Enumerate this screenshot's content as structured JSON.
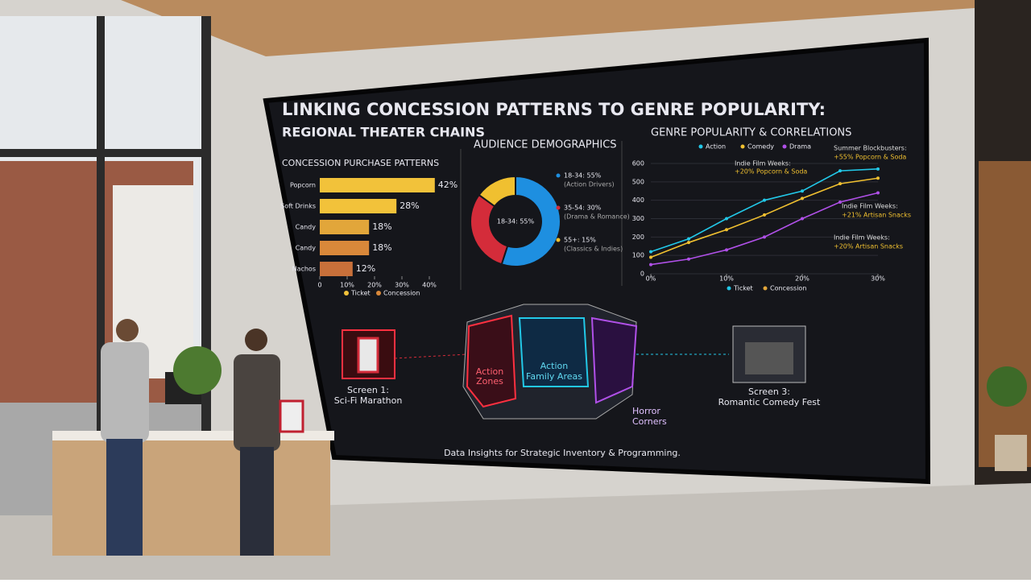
{
  "title": "LINKING CONCESSION PATTERNS TO GENRE POPULARITY:",
  "subtitle": "REGIONAL THEATER CHAINS",
  "chart_data": [
    {
      "type": "bar",
      "title": "CONCESSION PURCHASE PATTERNS",
      "categories": [
        "Popcorn",
        "Soft Drinks",
        "Candy",
        "Candy",
        "Nachos"
      ],
      "values": [
        42,
        28,
        18,
        18,
        12
      ],
      "value_labels": [
        "42%",
        "28%",
        "18%",
        "18%",
        "12%"
      ],
      "colors": [
        "#f2c23a",
        "#f2c23a",
        "#e2a63a",
        "#d9883a",
        "#c8703a"
      ],
      "xlim": [
        0,
        45
      ],
      "xticks": [
        0,
        {
          "value": 10,
          "label": "10%"
        },
        {
          "value": 20,
          "label": "20%"
        },
        {
          "value": 30,
          "label": "30%"
        },
        {
          "value": 40,
          "label": "40%"
        }
      ],
      "legend": [
        {
          "name": "Ticket",
          "color": "#f2c23a"
        },
        {
          "name": "Concession",
          "color": "#d9883a"
        }
      ]
    },
    {
      "type": "pie",
      "title": "AUDIENCE DEMOGRAPHICS",
      "center_label": "18-34: 55%",
      "categories": [
        "18-34: 55%",
        "35-54: 30%",
        "55+: 15%"
      ],
      "notes": [
        "(Action Drivers)",
        "(Drama & Romance)",
        "(Classics & Indies)"
      ],
      "values": [
        55,
        30,
        15
      ],
      "colors": [
        "#1e8fe0",
        "#d42c3a",
        "#f0c030"
      ]
    },
    {
      "type": "line",
      "title": "GENRE POPULARITY & CORRELATIONS",
      "x": [
        0,
        5,
        10,
        15,
        20,
        25,
        30
      ],
      "series": [
        {
          "name": "Action",
          "color": "#22c8e8",
          "values": [
            120,
            190,
            300,
            400,
            450,
            560,
            570
          ]
        },
        {
          "name": "Comedy",
          "color": "#f0c030",
          "values": [
            90,
            170,
            240,
            320,
            410,
            490,
            520
          ]
        },
        {
          "name": "Drama",
          "color": "#b050e8",
          "values": [
            50,
            80,
            130,
            200,
            300,
            390,
            440
          ]
        }
      ],
      "xlim": [
        0,
        30
      ],
      "ylim": [
        0,
        600
      ],
      "xticks": [
        {
          "value": 0,
          "label": "0%"
        },
        {
          "value": 10,
          "label": "10%"
        },
        {
          "value": 20,
          "label": "20%"
        },
        {
          "value": 30,
          "label": "30%"
        }
      ],
      "yticks": [
        0,
        100,
        200,
        300,
        400,
        500,
        600
      ],
      "annotations": [
        "Summer Blockbusters:",
        "+55% Popcorn & Soda",
        "Indie Film Weeks:",
        "+20% Popcorn & Soda",
        "Indie Film Weeks:",
        "+21% Artisan Snacks",
        "Indie Film Weeks:",
        "+20% Artisan Snacks"
      ],
      "legend2": [
        {
          "name": "Ticket",
          "color": "#22c8e8"
        },
        {
          "name": "Concession",
          "color": "#e2a63a"
        }
      ]
    }
  ],
  "map": {
    "screen1": [
      "Screen 1:",
      "Sci-Fi Marathon"
    ],
    "zone1": [
      "Action",
      "Zones"
    ],
    "zone2": [
      "Action",
      "Family Areas"
    ],
    "zone3": [
      "Horror",
      "Corners"
    ],
    "screen3": [
      "Screen 3:",
      "Romantic Comedy Fest"
    ]
  },
  "footer": "Data Insights for Strategic Inventory & Programming."
}
